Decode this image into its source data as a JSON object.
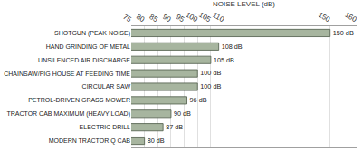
{
  "chart_data": {
    "type": "bar",
    "orientation": "horizontal",
    "xlabel": "NOISE LEVEL (dB)",
    "categories": [
      "SHOTGUN (PEAK NOISE)",
      "HAND GRINDING OF METAL",
      "UNSILENCED AIR DISCHARGE",
      "CHAINSAW/PIG HOUSE AT FEEDING TIME",
      "CIRCULAR SAW",
      "PETROL-DRIVEN GRASS MOWER",
      "TRACTOR CAB MAXIMUM (HEAVY LOAD)",
      "ELECTRIC DRILL",
      "MODERN TRACTOR Q CAB"
    ],
    "values": [
      150,
      108,
      105,
      100,
      100,
      96,
      90,
      87,
      80
    ],
    "value_labels": [
      "150 dB",
      "108 dB",
      "105 dB",
      "100 dB",
      "100 dB",
      "96 dB",
      "90 dB",
      "87 dB",
      "80 dB"
    ],
    "data_labels": true,
    "color": "#a7b59f",
    "xlim": [
      75,
      160
    ],
    "xticks": [
      75,
      80,
      85,
      90,
      95,
      100,
      105,
      110,
      150,
      160
    ],
    "grid": true
  }
}
